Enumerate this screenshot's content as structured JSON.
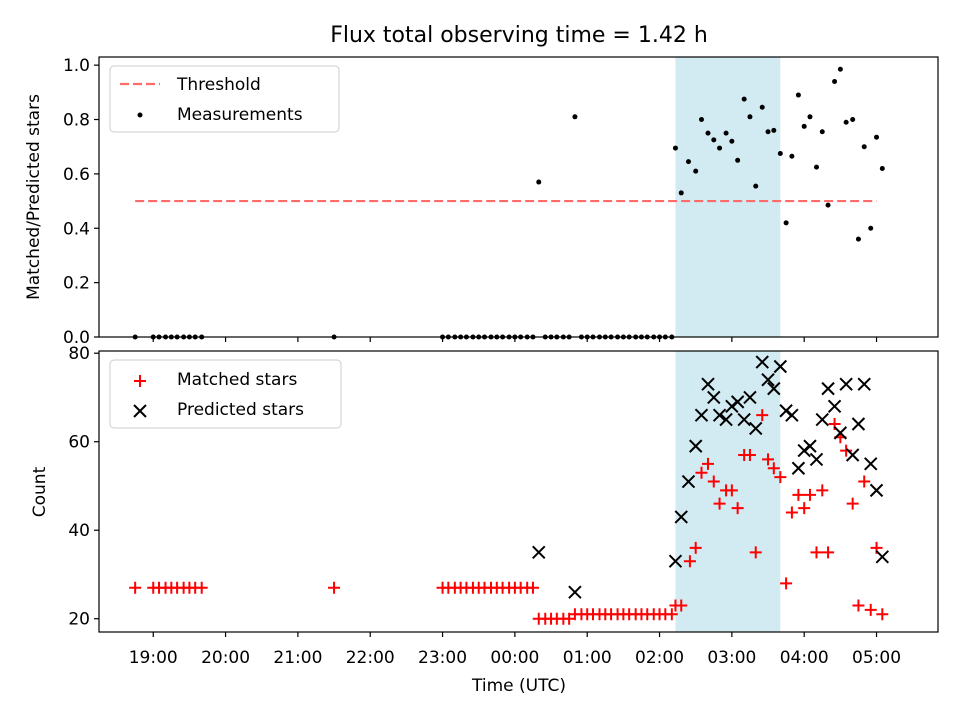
{
  "chart_data": {
    "title": "Flux total observing time = 1.42 h",
    "xlabel": "Time (UTC)",
    "x_ticks": [
      "19:00",
      "20:00",
      "21:00",
      "22:00",
      "23:00",
      "00:00",
      "01:00",
      "02:00",
      "03:00",
      "04:00",
      "05:00"
    ],
    "x_range_hours": [
      18.25,
      29.85
    ],
    "shaded_span_hours": [
      26.22,
      27.67
    ],
    "shaded_color": "#add8e6",
    "panels": [
      {
        "type": "scatter",
        "ylabel": "Matched/Predicted stars",
        "ylim": [
          0,
          1.03
        ],
        "y_ticks": [
          "0.0",
          "0.2",
          "0.4",
          "0.6",
          "0.8",
          "1.0"
        ],
        "y_tick_values": [
          0,
          0.2,
          0.4,
          0.6,
          0.8,
          1.0
        ],
        "legend": [
          "Threshold",
          "Measurements"
        ],
        "legend_position": "upper-left",
        "threshold": {
          "value": 0.5,
          "x_from": 18.75,
          "x_to": 29.0,
          "color": "#ff6b6b"
        },
        "measurement_color": "#000000",
        "measurements": [
          [
            18.75,
            0
          ],
          [
            19.0,
            0
          ],
          [
            19.08,
            0
          ],
          [
            19.17,
            0
          ],
          [
            19.25,
            0
          ],
          [
            19.33,
            0
          ],
          [
            19.42,
            0
          ],
          [
            19.5,
            0
          ],
          [
            19.58,
            0
          ],
          [
            19.67,
            0
          ],
          [
            21.5,
            0
          ],
          [
            23.0,
            0
          ],
          [
            23.08,
            0
          ],
          [
            23.17,
            0
          ],
          [
            23.25,
            0
          ],
          [
            23.33,
            0
          ],
          [
            23.42,
            0
          ],
          [
            23.5,
            0
          ],
          [
            23.58,
            0
          ],
          [
            23.67,
            0
          ],
          [
            23.75,
            0
          ],
          [
            23.83,
            0
          ],
          [
            23.92,
            0
          ],
          [
            24.0,
            0
          ],
          [
            24.08,
            0
          ],
          [
            24.17,
            0
          ],
          [
            24.25,
            0
          ],
          [
            24.33,
            0.57
          ],
          [
            24.42,
            0
          ],
          [
            24.5,
            0
          ],
          [
            24.58,
            0
          ],
          [
            24.67,
            0
          ],
          [
            24.75,
            0
          ],
          [
            24.83,
            0.81
          ],
          [
            24.92,
            0
          ],
          [
            25.0,
            0
          ],
          [
            25.08,
            0
          ],
          [
            25.17,
            0
          ],
          [
            25.25,
            0
          ],
          [
            25.33,
            0
          ],
          [
            25.42,
            0
          ],
          [
            25.5,
            0
          ],
          [
            25.58,
            0
          ],
          [
            25.67,
            0
          ],
          [
            25.75,
            0
          ],
          [
            25.83,
            0
          ],
          [
            25.92,
            0
          ],
          [
            26.0,
            0
          ],
          [
            26.08,
            0
          ],
          [
            26.17,
            0
          ],
          [
            26.22,
            0.695
          ],
          [
            26.3,
            0.53
          ],
          [
            26.4,
            0.645
          ],
          [
            26.5,
            0.61
          ],
          [
            26.58,
            0.8
          ],
          [
            26.67,
            0.75
          ],
          [
            26.75,
            0.725
          ],
          [
            26.83,
            0.695
          ],
          [
            26.92,
            0.75
          ],
          [
            27.0,
            0.72
          ],
          [
            27.08,
            0.65
          ],
          [
            27.17,
            0.875
          ],
          [
            27.25,
            0.81
          ],
          [
            27.33,
            0.555
          ],
          [
            27.42,
            0.845
          ],
          [
            27.5,
            0.755
          ],
          [
            27.58,
            0.76
          ],
          [
            27.67,
            0.675
          ],
          [
            27.75,
            0.42
          ],
          [
            27.83,
            0.665
          ],
          [
            27.92,
            0.89
          ],
          [
            28.0,
            0.775
          ],
          [
            28.08,
            0.81
          ],
          [
            28.17,
            0.625
          ],
          [
            28.25,
            0.755
          ],
          [
            28.33,
            0.485
          ],
          [
            28.42,
            0.94
          ],
          [
            28.5,
            0.985
          ],
          [
            28.58,
            0.79
          ],
          [
            28.67,
            0.8
          ],
          [
            28.75,
            0.36
          ],
          [
            28.83,
            0.7
          ],
          [
            28.92,
            0.4
          ],
          [
            29.0,
            0.735
          ],
          [
            29.08,
            0.62
          ]
        ]
      },
      {
        "type": "scatter",
        "ylabel": "Count",
        "ylim": [
          17,
          80.5
        ],
        "y_ticks": [
          "20",
          "40",
          "60",
          "80"
        ],
        "y_tick_values": [
          20,
          40,
          60,
          80
        ],
        "legend": [
          "Matched stars",
          "Predicted stars"
        ],
        "legend_position": "upper-left",
        "matched_color": "#ff0000",
        "predicted_color": "#000000",
        "matched": [
          [
            18.75,
            27
          ],
          [
            19.0,
            27
          ],
          [
            19.08,
            27
          ],
          [
            19.17,
            27
          ],
          [
            19.25,
            27
          ],
          [
            19.33,
            27
          ],
          [
            19.42,
            27
          ],
          [
            19.5,
            27
          ],
          [
            19.58,
            27
          ],
          [
            19.67,
            27
          ],
          [
            21.5,
            27
          ],
          [
            23.0,
            27
          ],
          [
            23.08,
            27
          ],
          [
            23.17,
            27
          ],
          [
            23.25,
            27
          ],
          [
            23.33,
            27
          ],
          [
            23.42,
            27
          ],
          [
            23.5,
            27
          ],
          [
            23.58,
            27
          ],
          [
            23.67,
            27
          ],
          [
            23.75,
            27
          ],
          [
            23.83,
            27
          ],
          [
            23.92,
            27
          ],
          [
            24.0,
            27
          ],
          [
            24.08,
            27
          ],
          [
            24.17,
            27
          ],
          [
            24.25,
            27
          ],
          [
            24.33,
            20
          ],
          [
            24.42,
            20
          ],
          [
            24.5,
            20
          ],
          [
            24.58,
            20
          ],
          [
            24.67,
            20
          ],
          [
            24.75,
            20
          ],
          [
            24.83,
            21
          ],
          [
            24.92,
            21
          ],
          [
            25.0,
            21
          ],
          [
            25.08,
            21
          ],
          [
            25.17,
            21
          ],
          [
            25.25,
            21
          ],
          [
            25.33,
            21
          ],
          [
            25.42,
            21
          ],
          [
            25.5,
            21
          ],
          [
            25.58,
            21
          ],
          [
            25.67,
            21
          ],
          [
            25.75,
            21
          ],
          [
            25.83,
            21
          ],
          [
            25.92,
            21
          ],
          [
            26.0,
            21
          ],
          [
            26.08,
            21
          ],
          [
            26.17,
            21
          ],
          [
            26.22,
            23
          ],
          [
            26.3,
            23
          ],
          [
            26.42,
            33
          ],
          [
            26.5,
            36
          ],
          [
            26.58,
            53
          ],
          [
            26.67,
            55
          ],
          [
            26.75,
            51
          ],
          [
            26.83,
            46
          ],
          [
            26.92,
            49
          ],
          [
            27.0,
            49
          ],
          [
            27.08,
            45
          ],
          [
            27.17,
            57
          ],
          [
            27.25,
            57
          ],
          [
            27.33,
            35
          ],
          [
            27.42,
            66
          ],
          [
            27.5,
            56
          ],
          [
            27.58,
            54
          ],
          [
            27.67,
            52
          ],
          [
            27.75,
            28
          ],
          [
            27.83,
            44
          ],
          [
            27.92,
            48
          ],
          [
            28.0,
            45
          ],
          [
            28.08,
            48
          ],
          [
            28.17,
            35
          ],
          [
            28.25,
            49
          ],
          [
            28.33,
            35
          ],
          [
            28.42,
            64
          ],
          [
            28.5,
            61
          ],
          [
            28.58,
            58
          ],
          [
            28.67,
            46
          ],
          [
            28.75,
            23
          ],
          [
            28.83,
            51
          ],
          [
            28.92,
            22
          ],
          [
            29.0,
            36
          ],
          [
            29.08,
            21
          ]
        ],
        "predicted": [
          [
            24.33,
            35
          ],
          [
            24.83,
            26
          ],
          [
            26.22,
            33
          ],
          [
            26.3,
            43
          ],
          [
            26.4,
            51
          ],
          [
            26.5,
            59
          ],
          [
            26.58,
            66
          ],
          [
            26.67,
            73
          ],
          [
            26.75,
            70
          ],
          [
            26.83,
            66
          ],
          [
            26.92,
            65
          ],
          [
            27.0,
            68
          ],
          [
            27.08,
            69
          ],
          [
            27.17,
            65
          ],
          [
            27.25,
            70
          ],
          [
            27.33,
            63
          ],
          [
            27.42,
            78
          ],
          [
            27.5,
            74
          ],
          [
            27.58,
            72
          ],
          [
            27.67,
            77
          ],
          [
            27.75,
            67
          ],
          [
            27.83,
            66
          ],
          [
            27.92,
            54
          ],
          [
            28.0,
            58
          ],
          [
            28.08,
            59
          ],
          [
            28.17,
            56
          ],
          [
            28.25,
            65
          ],
          [
            28.33,
            72
          ],
          [
            28.42,
            68
          ],
          [
            28.5,
            62
          ],
          [
            28.58,
            73
          ],
          [
            28.67,
            57
          ],
          [
            28.75,
            64
          ],
          [
            28.83,
            73
          ],
          [
            28.92,
            55
          ],
          [
            29.0,
            49
          ],
          [
            29.08,
            34
          ]
        ]
      }
    ]
  }
}
